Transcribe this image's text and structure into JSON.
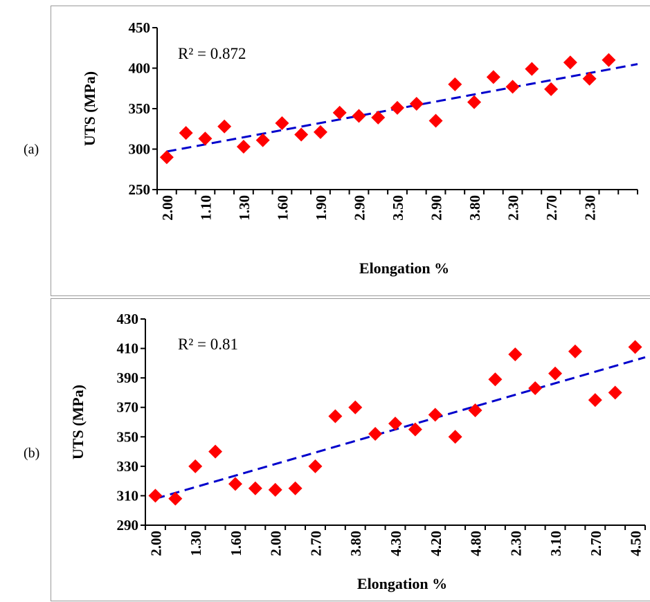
{
  "panels": [
    {
      "label": "(a)"
    },
    {
      "label": "(b)"
    }
  ],
  "chart_data": [
    {
      "type": "scatter",
      "xlabel": "Elongation %",
      "ylabel": "UTS (MPa)",
      "ylim": [
        250,
        450
      ],
      "yticks": [
        250,
        300,
        350,
        400,
        450
      ],
      "x_tick_labels": [
        "2.00",
        "1.10",
        "1.30",
        "1.60",
        "1.90",
        "2.90",
        "3.50",
        "2.90",
        "3.80",
        "2.30",
        "2.70",
        "2.30"
      ],
      "annotation": "R² = 0.872",
      "marker_color": "#ff0000",
      "trendline_color": "#0000cc",
      "grid": false,
      "legend": "none",
      "points": [
        {
          "x": 1,
          "y": 290
        },
        {
          "x": 2,
          "y": 320
        },
        {
          "x": 3,
          "y": 313
        },
        {
          "x": 4,
          "y": 328
        },
        {
          "x": 5,
          "y": 303
        },
        {
          "x": 6,
          "y": 311
        },
        {
          "x": 7,
          "y": 332
        },
        {
          "x": 8,
          "y": 318
        },
        {
          "x": 9,
          "y": 321
        },
        {
          "x": 10,
          "y": 345
        },
        {
          "x": 11,
          "y": 341
        },
        {
          "x": 12,
          "y": 339
        },
        {
          "x": 13,
          "y": 351
        },
        {
          "x": 14,
          "y": 356
        },
        {
          "x": 15,
          "y": 335
        },
        {
          "x": 16,
          "y": 380
        },
        {
          "x": 17,
          "y": 358
        },
        {
          "x": 18,
          "y": 389
        },
        {
          "x": 19,
          "y": 377
        },
        {
          "x": 20,
          "y": 399
        },
        {
          "x": 21,
          "y": 374
        },
        {
          "x": 22,
          "y": 407
        },
        {
          "x": 23,
          "y": 387
        },
        {
          "x": 24,
          "y": 410
        }
      ],
      "trendline": {
        "from": {
          "x": 1,
          "y": 297
        },
        "to": {
          "x": 25,
          "y": 405
        }
      }
    },
    {
      "type": "scatter",
      "xlabel": "Elongation %",
      "ylabel": "UTS (MPa)",
      "ylim": [
        290,
        430
      ],
      "yticks": [
        290,
        310,
        330,
        350,
        370,
        390,
        410,
        430
      ],
      "x_tick_labels": [
        "2.00",
        "1.30",
        "1.60",
        "2.00",
        "2.70",
        "3.80",
        "4.30",
        "4.20",
        "4.80",
        "2.30",
        "3.10",
        "2.70",
        "4.50"
      ],
      "annotation": "R² = 0.81",
      "marker_color": "#ff0000",
      "trendline_color": "#0000cc",
      "grid": false,
      "legend": "none",
      "points": [
        {
          "x": 1,
          "y": 310
        },
        {
          "x": 2,
          "y": 308
        },
        {
          "x": 3,
          "y": 330
        },
        {
          "x": 4,
          "y": 340
        },
        {
          "x": 5,
          "y": 318
        },
        {
          "x": 6,
          "y": 315
        },
        {
          "x": 7,
          "y": 314
        },
        {
          "x": 8,
          "y": 315
        },
        {
          "x": 9,
          "y": 330
        },
        {
          "x": 10,
          "y": 364
        },
        {
          "x": 11,
          "y": 370
        },
        {
          "x": 12,
          "y": 352
        },
        {
          "x": 13,
          "y": 359
        },
        {
          "x": 14,
          "y": 355
        },
        {
          "x": 15,
          "y": 365
        },
        {
          "x": 16,
          "y": 350
        },
        {
          "x": 17,
          "y": 368
        },
        {
          "x": 18,
          "y": 389
        },
        {
          "x": 19,
          "y": 406
        },
        {
          "x": 20,
          "y": 383
        },
        {
          "x": 21,
          "y": 393
        },
        {
          "x": 22,
          "y": 408
        },
        {
          "x": 23,
          "y": 375
        },
        {
          "x": 24,
          "y": 380
        },
        {
          "x": 25,
          "y": 411
        }
      ],
      "trendline": {
        "from": {
          "x": 1,
          "y": 308
        },
        "to": {
          "x": 25,
          "y": 404
        }
      }
    }
  ]
}
